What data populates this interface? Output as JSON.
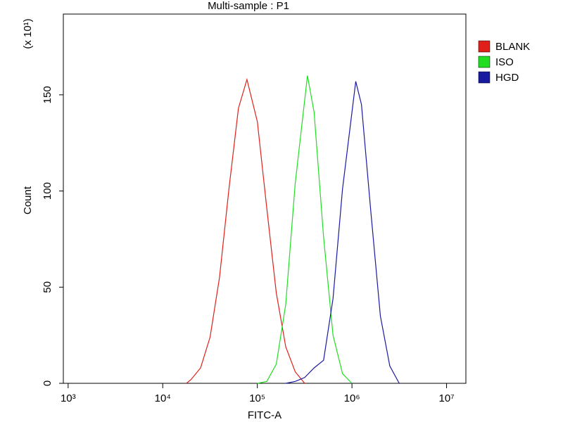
{
  "chart_data": {
    "type": "line",
    "title": "Multi-sample : P1",
    "xlabel": "FITC-A",
    "ylabel": "Count",
    "y_multiplier": "(x 10¹)",
    "xscale": "log",
    "xlim": [
      890,
      16000000
    ],
    "ylim": [
      0,
      192
    ],
    "xticks": [
      {
        "value": 1000,
        "label": "10³"
      },
      {
        "value": 10000,
        "label": "10⁴"
      },
      {
        "value": 100000,
        "label": "10⁵"
      },
      {
        "value": 1000000,
        "label": "10⁶"
      },
      {
        "value": 10000000,
        "label": "10⁷"
      }
    ],
    "yticks": [
      0,
      50,
      100,
      150
    ],
    "legend": "upper right",
    "series": [
      {
        "name": "BLANK",
        "color": "#e0201a",
        "x": [
          17783,
          19953,
          25119,
          31623,
          39811,
          50119,
          63096,
          77625,
          100000,
          125893,
          158489,
          199526,
          251189,
          316228
        ],
        "values": [
          0,
          2,
          8,
          24,
          55,
          101,
          143,
          158,
          136,
          91,
          47,
          19,
          6,
          0
        ]
      },
      {
        "name": "ISO",
        "color": "#22dd22",
        "x": [
          100000,
          125893,
          158489,
          199526,
          251189,
          338844,
          398107,
          501187,
          630957,
          794328,
          1000000
        ],
        "values": [
          0,
          1,
          10,
          41,
          104,
          160,
          141,
          76,
          25,
          5,
          0
        ]
      },
      {
        "name": "HGD",
        "color": "#1a1aa0",
        "x": [
          199526,
          251189,
          316228,
          398107,
          501187,
          630957,
          794328,
          1096478,
          1258925,
          1584893,
          1995262,
          2511886,
          3162278
        ],
        "values": [
          0,
          1,
          3,
          8,
          12,
          44,
          101,
          157,
          145,
          89,
          35,
          9,
          0
        ]
      }
    ]
  }
}
